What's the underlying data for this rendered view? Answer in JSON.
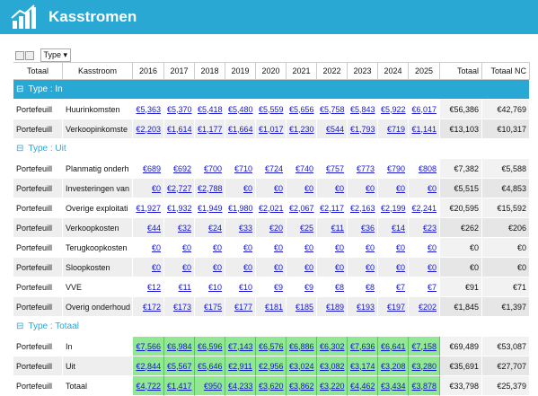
{
  "header": {
    "title": "Kasstromen"
  },
  "toolbar": {
    "type_filter": "Type"
  },
  "table": {
    "columns": [
      "Totaal",
      "Kasstroom",
      "2016",
      "2017",
      "2018",
      "2019",
      "2020",
      "2021",
      "2022",
      "2023",
      "2024",
      "2025",
      "Totaal",
      "Totaal NC"
    ],
    "groups": [
      {
        "label": "Type : In",
        "rows": [
          {
            "owner": "Portefeuill",
            "name": "Huurinkomsten",
            "values": [
              "€5,363",
              "€5,370",
              "€5,418",
              "€5,480",
              "€5,559",
              "€5,656",
              "€5,758",
              "€5,843",
              "€5,922",
              "€6,017"
            ],
            "total": "€56,386",
            "total_nc": "€42,769"
          },
          {
            "owner": "Portefeuill",
            "name": "Verkoopinkomste",
            "values": [
              "€2,203",
              "€1,614",
              "€1,177",
              "€1,664",
              "€1,017",
              "€1,230",
              "€544",
              "€1,793",
              "€719",
              "€1,141"
            ],
            "total": "€13,103",
            "total_nc": "€10,317"
          }
        ]
      },
      {
        "label": "Type : Uit",
        "rows": [
          {
            "owner": "Portefeuill",
            "name": "Planmatig onderh",
            "values": [
              "€689",
              "€692",
              "€700",
              "€710",
              "€724",
              "€740",
              "€757",
              "€773",
              "€790",
              "€808"
            ],
            "total": "€7,382",
            "total_nc": "€5,588"
          },
          {
            "owner": "Portefeuill",
            "name": "Investeringen van",
            "values": [
              "€0",
              "€2,727",
              "€2,788",
              "€0",
              "€0",
              "€0",
              "€0",
              "€0",
              "€0",
              "€0"
            ],
            "total": "€5,515",
            "total_nc": "€4,853"
          },
          {
            "owner": "Portefeuill",
            "name": "Overige exploitati",
            "values": [
              "€1,927",
              "€1,932",
              "€1,949",
              "€1,980",
              "€2,021",
              "€2,067",
              "€2,117",
              "€2,163",
              "€2,199",
              "€2,241"
            ],
            "total": "€20,595",
            "total_nc": "€15,592"
          },
          {
            "owner": "Portefeuill",
            "name": "Verkoopkosten",
            "values": [
              "€44",
              "€32",
              "€24",
              "€33",
              "€20",
              "€25",
              "€11",
              "€36",
              "€14",
              "€23"
            ],
            "total": "€262",
            "total_nc": "€206"
          },
          {
            "owner": "Portefeuill",
            "name": "Terugkoopkosten",
            "values": [
              "€0",
              "€0",
              "€0",
              "€0",
              "€0",
              "€0",
              "€0",
              "€0",
              "€0",
              "€0"
            ],
            "total": "€0",
            "total_nc": "€0"
          },
          {
            "owner": "Portefeuill",
            "name": "Sloopkosten",
            "values": [
              "€0",
              "€0",
              "€0",
              "€0",
              "€0",
              "€0",
              "€0",
              "€0",
              "€0",
              "€0"
            ],
            "total": "€0",
            "total_nc": "€0"
          },
          {
            "owner": "Portefeuill",
            "name": "VVE",
            "values": [
              "€12",
              "€11",
              "€10",
              "€10",
              "€9",
              "€9",
              "€8",
              "€8",
              "€7",
              "€7"
            ],
            "total": "€91",
            "total_nc": "€71"
          },
          {
            "owner": "Portefeuill",
            "name": "Overig onderhoud",
            "values": [
              "€172",
              "€173",
              "€175",
              "€177",
              "€181",
              "€185",
              "€189",
              "€193",
              "€197",
              "€202"
            ],
            "total": "€1,845",
            "total_nc": "€1,397"
          }
        ]
      },
      {
        "label": "Type : Totaal",
        "rows": [
          {
            "owner": "Portefeuill",
            "name": "In",
            "values": [
              "€7,566",
              "€6,984",
              "€6,596",
              "€7,143",
              "€6,576",
              "€6,886",
              "€6,302",
              "€7,636",
              "€6,641",
              "€7,158"
            ],
            "total": "€69,489",
            "total_nc": "€53,087"
          },
          {
            "owner": "Portefeuill",
            "name": "Uit",
            "values": [
              "€2,844",
              "€5,567",
              "€5,646",
              "€2,911",
              "€2,956",
              "€3,024",
              "€3,082",
              "€3,174",
              "€3,208",
              "€3,280"
            ],
            "total": "€35,691",
            "total_nc": "€27,707"
          },
          {
            "owner": "Portefeuill",
            "name": "Totaal",
            "values": [
              "€4,722",
              "€1,417",
              "€950",
              "€4,233",
              "€3,620",
              "€3,862",
              "€3,220",
              "€4,462",
              "€3,434",
              "€3,878"
            ],
            "total": "€33,798",
            "total_nc": "€25,379"
          }
        ]
      }
    ]
  }
}
